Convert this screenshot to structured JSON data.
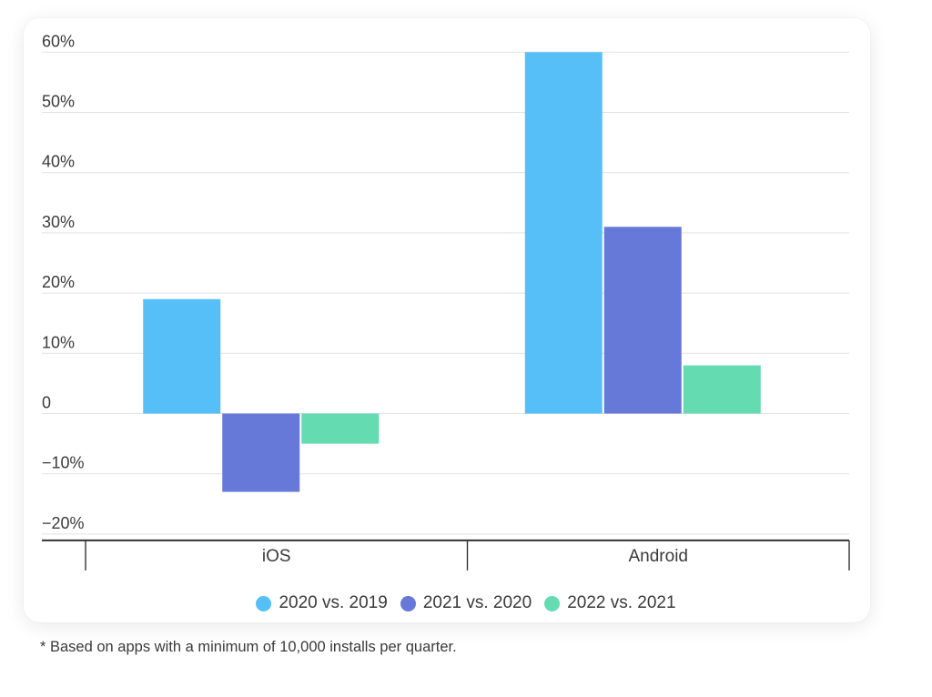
{
  "chart_data": {
    "type": "bar",
    "categories": [
      "iOS",
      "Android"
    ],
    "series": [
      {
        "name": "2020 vs. 2019",
        "color": "#56bff8",
        "values": [
          19,
          60
        ]
      },
      {
        "name": "2021 vs. 2020",
        "color": "#6678d8",
        "values": [
          -13,
          31
        ]
      },
      {
        "name": "2022 vs. 2021",
        "color": "#64dbb1",
        "values": [
          -5,
          8
        ]
      }
    ],
    "yticks": [
      {
        "value": 60,
        "label": "60%"
      },
      {
        "value": 50,
        "label": "50%"
      },
      {
        "value": 40,
        "label": "40%"
      },
      {
        "value": 30,
        "label": "30%"
      },
      {
        "value": 20,
        "label": "20%"
      },
      {
        "value": 10,
        "label": "10%"
      },
      {
        "value": 0,
        "label": "0"
      },
      {
        "value": -10,
        "label": "−10%"
      },
      {
        "value": -20,
        "label": "−20%"
      }
    ],
    "ylim": [
      -20,
      60
    ],
    "grid": true,
    "legend_position": "bottom-center"
  },
  "footnote": "* Based on apps with a minimum of 10,000 installs per quarter."
}
